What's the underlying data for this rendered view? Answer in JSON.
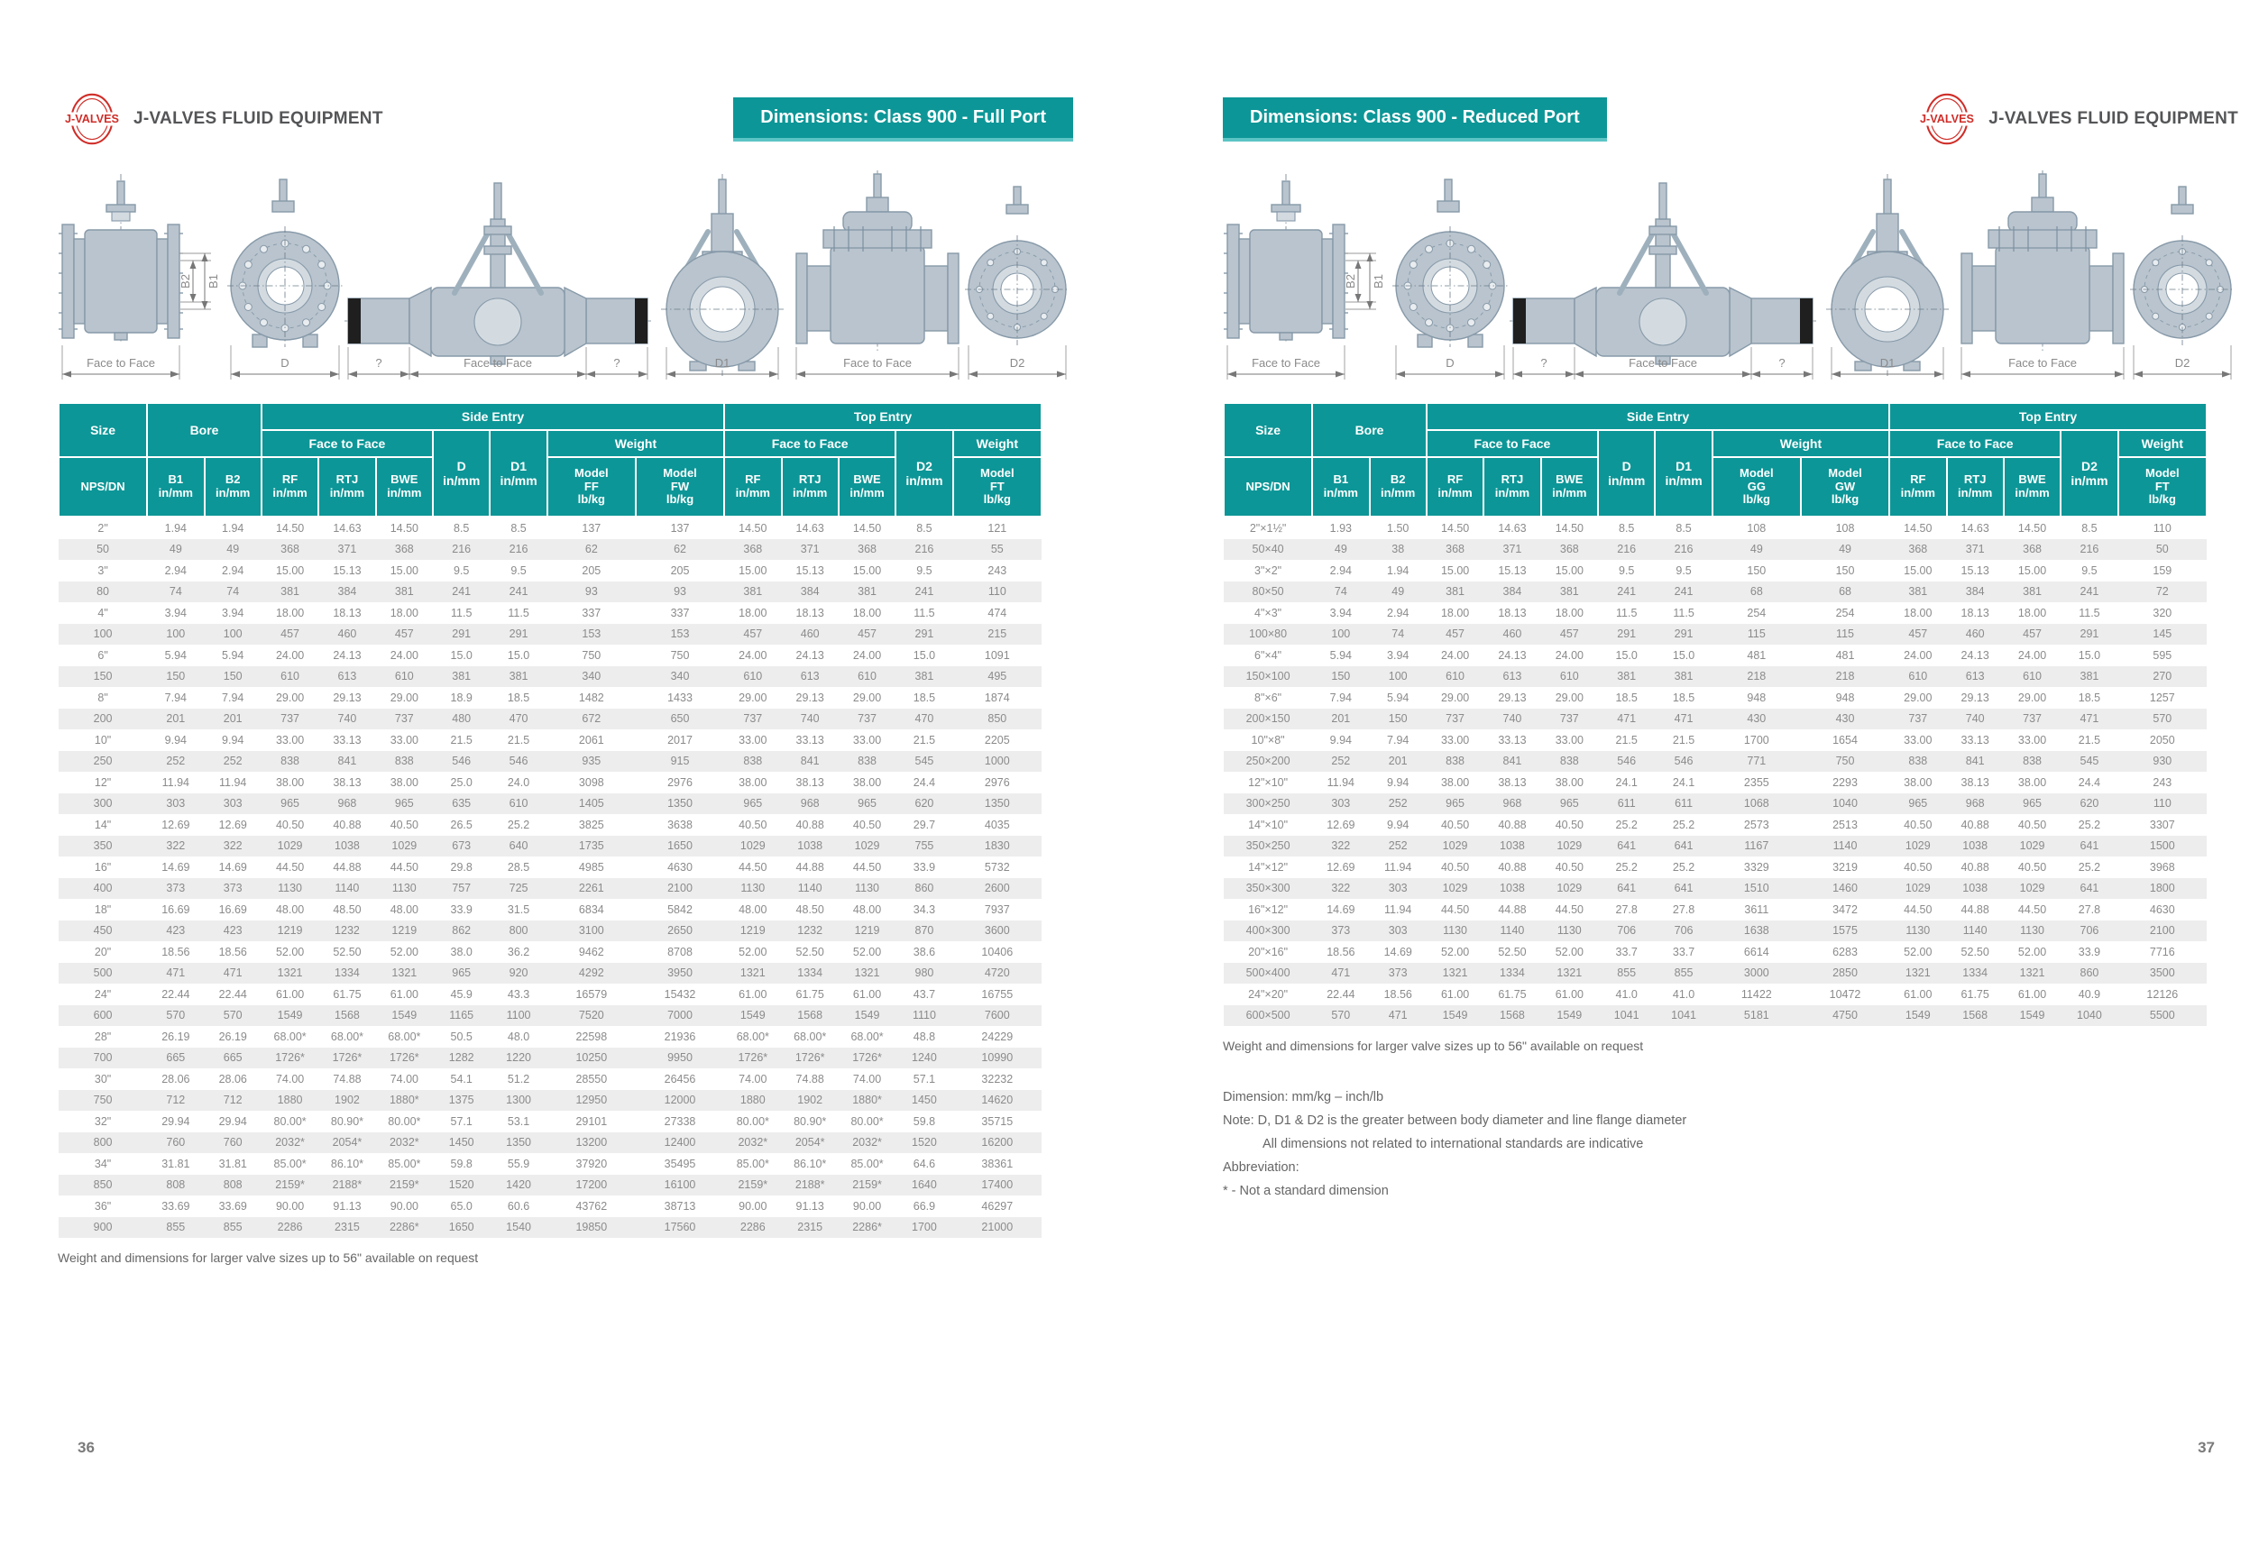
{
  "brand": {
    "logo_text": "J-VALVES",
    "company": "J-VALVES FLUID EQUIPMENT"
  },
  "pages": [
    {
      "banner": "Dimensions: Class 900 - Full Port",
      "page_number": "36",
      "footnote": "Weight and dimensions for larger valve sizes up to 56\" available on request"
    },
    {
      "banner": "Dimensions: Class 900 - Reduced Port",
      "page_number": "37",
      "footnote": "Weight and dimensions for larger valve sizes up to 56\" available on request",
      "notes": [
        {
          "text": "Dimension: mm/kg – inch/lb",
          "indent": false
        },
        {
          "text": "Note: D, D1 & D2 is the greater between body diameter and line flange diameter",
          "indent": false
        },
        {
          "text": "All dimensions not related to international standards are indicative",
          "indent": true
        },
        {
          "text": "Abbreviation:",
          "indent": false
        },
        {
          "text": "* - Not a standard dimension",
          "indent": false
        }
      ]
    }
  ],
  "drawings": {
    "fig1_label": "Face to Face",
    "fig2_label": "D",
    "fig3_left": "?",
    "fig3_label": "Face to Face",
    "fig3_right": "?",
    "fig4_label": "D1",
    "fig5_label": "Face to Face",
    "fig6_label": "D2",
    "b1_label": "B1",
    "b2_label": "B2"
  },
  "colors": {
    "teal": "#0d9697",
    "teal_light": "#5bc4c5",
    "logo_red": "#cf2d28",
    "row_stripe": "#ededed",
    "body_text": "#8b8b8b"
  },
  "tables": {
    "left": {
      "header": {
        "size": "Size",
        "nps": "NPS/DN",
        "bore": "Bore",
        "b1": "B1\nin/mm",
        "b2": "B2\nin/mm",
        "side_entry": "Side Entry",
        "top_entry": "Top Entry",
        "face_to_face": "Face to Face",
        "weight": "Weight",
        "rf": "RF\nin/mm",
        "rtj": "RTJ\nin/mm",
        "bwe": "BWE\nin/mm",
        "d": "D\nin/mm",
        "d1": "D1\nin/mm",
        "d2": "D2\nin/mm",
        "w1": "Model\nFF\nlb/kg",
        "w2": "Model\nFW\nlb/kg",
        "w3": "Model\nFT\nlb/kg"
      },
      "rows": [
        [
          "2\"",
          "1.94",
          "1.94",
          "14.50",
          "14.63",
          "14.50",
          "8.5",
          "8.5",
          "137",
          "137",
          "14.50",
          "14.63",
          "14.50",
          "8.5",
          "121"
        ],
        [
          "50",
          "49",
          "49",
          "368",
          "371",
          "368",
          "216",
          "216",
          "62",
          "62",
          "368",
          "371",
          "368",
          "216",
          "55"
        ],
        [
          "3\"",
          "2.94",
          "2.94",
          "15.00",
          "15.13",
          "15.00",
          "9.5",
          "9.5",
          "205",
          "205",
          "15.00",
          "15.13",
          "15.00",
          "9.5",
          "243"
        ],
        [
          "80",
          "74",
          "74",
          "381",
          "384",
          "381",
          "241",
          "241",
          "93",
          "93",
          "381",
          "384",
          "381",
          "241",
          "110"
        ],
        [
          "4\"",
          "3.94",
          "3.94",
          "18.00",
          "18.13",
          "18.00",
          "11.5",
          "11.5",
          "337",
          "337",
          "18.00",
          "18.13",
          "18.00",
          "11.5",
          "474"
        ],
        [
          "100",
          "100",
          "100",
          "457",
          "460",
          "457",
          "291",
          "291",
          "153",
          "153",
          "457",
          "460",
          "457",
          "291",
          "215"
        ],
        [
          "6\"",
          "5.94",
          "5.94",
          "24.00",
          "24.13",
          "24.00",
          "15.0",
          "15.0",
          "750",
          "750",
          "24.00",
          "24.13",
          "24.00",
          "15.0",
          "1091"
        ],
        [
          "150",
          "150",
          "150",
          "610",
          "613",
          "610",
          "381",
          "381",
          "340",
          "340",
          "610",
          "613",
          "610",
          "381",
          "495"
        ],
        [
          "8\"",
          "7.94",
          "7.94",
          "29.00",
          "29.13",
          "29.00",
          "18.9",
          "18.5",
          "1482",
          "1433",
          "29.00",
          "29.13",
          "29.00",
          "18.5",
          "1874"
        ],
        [
          "200",
          "201",
          "201",
          "737",
          "740",
          "737",
          "480",
          "470",
          "672",
          "650",
          "737",
          "740",
          "737",
          "470",
          "850"
        ],
        [
          "10\"",
          "9.94",
          "9.94",
          "33.00",
          "33.13",
          "33.00",
          "21.5",
          "21.5",
          "2061",
          "2017",
          "33.00",
          "33.13",
          "33.00",
          "21.5",
          "2205"
        ],
        [
          "250",
          "252",
          "252",
          "838",
          "841",
          "838",
          "546",
          "546",
          "935",
          "915",
          "838",
          "841",
          "838",
          "545",
          "1000"
        ],
        [
          "12\"",
          "11.94",
          "11.94",
          "38.00",
          "38.13",
          "38.00",
          "25.0",
          "24.0",
          "3098",
          "2976",
          "38.00",
          "38.13",
          "38.00",
          "24.4",
          "2976"
        ],
        [
          "300",
          "303",
          "303",
          "965",
          "968",
          "965",
          "635",
          "610",
          "1405",
          "1350",
          "965",
          "968",
          "965",
          "620",
          "1350"
        ],
        [
          "14\"",
          "12.69",
          "12.69",
          "40.50",
          "40.88",
          "40.50",
          "26.5",
          "25.2",
          "3825",
          "3638",
          "40.50",
          "40.88",
          "40.50",
          "29.7",
          "4035"
        ],
        [
          "350",
          "322",
          "322",
          "1029",
          "1038",
          "1029",
          "673",
          "640",
          "1735",
          "1650",
          "1029",
          "1038",
          "1029",
          "755",
          "1830"
        ],
        [
          "16\"",
          "14.69",
          "14.69",
          "44.50",
          "44.88",
          "44.50",
          "29.8",
          "28.5",
          "4985",
          "4630",
          "44.50",
          "44.88",
          "44.50",
          "33.9",
          "5732"
        ],
        [
          "400",
          "373",
          "373",
          "1130",
          "1140",
          "1130",
          "757",
          "725",
          "2261",
          "2100",
          "1130",
          "1140",
          "1130",
          "860",
          "2600"
        ],
        [
          "18\"",
          "16.69",
          "16.69",
          "48.00",
          "48.50",
          "48.00",
          "33.9",
          "31.5",
          "6834",
          "5842",
          "48.00",
          "48.50",
          "48.00",
          "34.3",
          "7937"
        ],
        [
          "450",
          "423",
          "423",
          "1219",
          "1232",
          "1219",
          "862",
          "800",
          "3100",
          "2650",
          "1219",
          "1232",
          "1219",
          "870",
          "3600"
        ],
        [
          "20\"",
          "18.56",
          "18.56",
          "52.00",
          "52.50",
          "52.00",
          "38.0",
          "36.2",
          "9462",
          "8708",
          "52.00",
          "52.50",
          "52.00",
          "38.6",
          "10406"
        ],
        [
          "500",
          "471",
          "471",
          "1321",
          "1334",
          "1321",
          "965",
          "920",
          "4292",
          "3950",
          "1321",
          "1334",
          "1321",
          "980",
          "4720"
        ],
        [
          "24\"",
          "22.44",
          "22.44",
          "61.00",
          "61.75",
          "61.00",
          "45.9",
          "43.3",
          "16579",
          "15432",
          "61.00",
          "61.75",
          "61.00",
          "43.7",
          "16755"
        ],
        [
          "600",
          "570",
          "570",
          "1549",
          "1568",
          "1549",
          "1165",
          "1100",
          "7520",
          "7000",
          "1549",
          "1568",
          "1549",
          "1110",
          "7600"
        ],
        [
          "28\"",
          "26.19",
          "26.19",
          "68.00*",
          "68.00*",
          "68.00*",
          "50.5",
          "48.0",
          "22598",
          "21936",
          "68.00*",
          "68.00*",
          "68.00*",
          "48.8",
          "24229"
        ],
        [
          "700",
          "665",
          "665",
          "1726*",
          "1726*",
          "1726*",
          "1282",
          "1220",
          "10250",
          "9950",
          "1726*",
          "1726*",
          "1726*",
          "1240",
          "10990"
        ],
        [
          "30\"",
          "28.06",
          "28.06",
          "74.00",
          "74.88",
          "74.00",
          "54.1",
          "51.2",
          "28550",
          "26456",
          "74.00",
          "74.88",
          "74.00",
          "57.1",
          "32232"
        ],
        [
          "750",
          "712",
          "712",
          "1880",
          "1902",
          "1880*",
          "1375",
          "1300",
          "12950",
          "12000",
          "1880",
          "1902",
          "1880*",
          "1450",
          "14620"
        ],
        [
          "32\"",
          "29.94",
          "29.94",
          "80.00*",
          "80.90*",
          "80.00*",
          "57.1",
          "53.1",
          "29101",
          "27338",
          "80.00*",
          "80.90*",
          "80.00*",
          "59.8",
          "35715"
        ],
        [
          "800",
          "760",
          "760",
          "2032*",
          "2054*",
          "2032*",
          "1450",
          "1350",
          "13200",
          "12400",
          "2032*",
          "2054*",
          "2032*",
          "1520",
          "16200"
        ],
        [
          "34\"",
          "31.81",
          "31.81",
          "85.00*",
          "86.10*",
          "85.00*",
          "59.8",
          "55.9",
          "37920",
          "35495",
          "85.00*",
          "86.10*",
          "85.00*",
          "64.6",
          "38361"
        ],
        [
          "850",
          "808",
          "808",
          "2159*",
          "2188*",
          "2159*",
          "1520",
          "1420",
          "17200",
          "16100",
          "2159*",
          "2188*",
          "2159*",
          "1640",
          "17400"
        ],
        [
          "36\"",
          "33.69",
          "33.69",
          "90.00",
          "91.13",
          "90.00",
          "65.0",
          "60.6",
          "43762",
          "38713",
          "90.00",
          "91.13",
          "90.00",
          "66.9",
          "46297"
        ],
        [
          "900",
          "855",
          "855",
          "2286",
          "2315",
          "2286*",
          "1650",
          "1540",
          "19850",
          "17560",
          "2286",
          "2315",
          "2286*",
          "1700",
          "21000"
        ]
      ]
    },
    "right": {
      "header": {
        "size": "Size",
        "nps": "NPS/DN",
        "bore": "Bore",
        "b1": "B1\nin/mm",
        "b2": "B2\nin/mm",
        "side_entry": "Side Entry",
        "top_entry": "Top Entry",
        "face_to_face": "Face to Face",
        "weight": "Weight",
        "rf": "RF\nin/mm",
        "rtj": "RTJ\nin/mm",
        "bwe": "BWE\nin/mm",
        "d": "D\nin/mm",
        "d1": "D1\nin/mm",
        "d2": "D2\nin/mm",
        "w1": "Model\nGG\nlb/kg",
        "w2": "Model\nGW\nlb/kg",
        "w3": "Model\nFT\nlb/kg"
      },
      "rows": [
        [
          "2\"×1½\"",
          "1.93",
          "1.50",
          "14.50",
          "14.63",
          "14.50",
          "8.5",
          "8.5",
          "108",
          "108",
          "14.50",
          "14.63",
          "14.50",
          "8.5",
          "110"
        ],
        [
          "50×40",
          "49",
          "38",
          "368",
          "371",
          "368",
          "216",
          "216",
          "49",
          "49",
          "368",
          "371",
          "368",
          "216",
          "50"
        ],
        [
          "3\"×2\"",
          "2.94",
          "1.94",
          "15.00",
          "15.13",
          "15.00",
          "9.5",
          "9.5",
          "150",
          "150",
          "15.00",
          "15.13",
          "15.00",
          "9.5",
          "159"
        ],
        [
          "80×50",
          "74",
          "49",
          "381",
          "384",
          "381",
          "241",
          "241",
          "68",
          "68",
          "381",
          "384",
          "381",
          "241",
          "72"
        ],
        [
          "4\"×3\"",
          "3.94",
          "2.94",
          "18.00",
          "18.13",
          "18.00",
          "11.5",
          "11.5",
          "254",
          "254",
          "18.00",
          "18.13",
          "18.00",
          "11.5",
          "320"
        ],
        [
          "100×80",
          "100",
          "74",
          "457",
          "460",
          "457",
          "291",
          "291",
          "115",
          "115",
          "457",
          "460",
          "457",
          "291",
          "145"
        ],
        [
          "6\"×4\"",
          "5.94",
          "3.94",
          "24.00",
          "24.13",
          "24.00",
          "15.0",
          "15.0",
          "481",
          "481",
          "24.00",
          "24.13",
          "24.00",
          "15.0",
          "595"
        ],
        [
          "150×100",
          "150",
          "100",
          "610",
          "613",
          "610",
          "381",
          "381",
          "218",
          "218",
          "610",
          "613",
          "610",
          "381",
          "270"
        ],
        [
          "8\"×6\"",
          "7.94",
          "5.94",
          "29.00",
          "29.13",
          "29.00",
          "18.5",
          "18.5",
          "948",
          "948",
          "29.00",
          "29.13",
          "29.00",
          "18.5",
          "1257"
        ],
        [
          "200×150",
          "201",
          "150",
          "737",
          "740",
          "737",
          "471",
          "471",
          "430",
          "430",
          "737",
          "740",
          "737",
          "471",
          "570"
        ],
        [
          "10\"×8\"",
          "9.94",
          "7.94",
          "33.00",
          "33.13",
          "33.00",
          "21.5",
          "21.5",
          "1700",
          "1654",
          "33.00",
          "33.13",
          "33.00",
          "21.5",
          "2050"
        ],
        [
          "250×200",
          "252",
          "201",
          "838",
          "841",
          "838",
          "546",
          "546",
          "771",
          "750",
          "838",
          "841",
          "838",
          "545",
          "930"
        ],
        [
          "12\"×10\"",
          "11.94",
          "9.94",
          "38.00",
          "38.13",
          "38.00",
          "24.1",
          "24.1",
          "2355",
          "2293",
          "38.00",
          "38.13",
          "38.00",
          "24.4",
          "243"
        ],
        [
          "300×250",
          "303",
          "252",
          "965",
          "968",
          "965",
          "611",
          "611",
          "1068",
          "1040",
          "965",
          "968",
          "965",
          "620",
          "110"
        ],
        [
          "14\"×10\"",
          "12.69",
          "9.94",
          "40.50",
          "40.88",
          "40.50",
          "25.2",
          "25.2",
          "2573",
          "2513",
          "40.50",
          "40.88",
          "40.50",
          "25.2",
          "3307"
        ],
        [
          "350×250",
          "322",
          "252",
          "1029",
          "1038",
          "1029",
          "641",
          "641",
          "1167",
          "1140",
          "1029",
          "1038",
          "1029",
          "641",
          "1500"
        ],
        [
          "14\"×12\"",
          "12.69",
          "11.94",
          "40.50",
          "40.88",
          "40.50",
          "25.2",
          "25.2",
          "3329",
          "3219",
          "40.50",
          "40.88",
          "40.50",
          "25.2",
          "3968"
        ],
        [
          "350×300",
          "322",
          "303",
          "1029",
          "1038",
          "1029",
          "641",
          "641",
          "1510",
          "1460",
          "1029",
          "1038",
          "1029",
          "641",
          "1800"
        ],
        [
          "16\"×12\"",
          "14.69",
          "11.94",
          "44.50",
          "44.88",
          "44.50",
          "27.8",
          "27.8",
          "3611",
          "3472",
          "44.50",
          "44.88",
          "44.50",
          "27.8",
          "4630"
        ],
        [
          "400×300",
          "373",
          "303",
          "1130",
          "1140",
          "1130",
          "706",
          "706",
          "1638",
          "1575",
          "1130",
          "1140",
          "1130",
          "706",
          "2100"
        ],
        [
          "20\"×16\"",
          "18.56",
          "14.69",
          "52.00",
          "52.50",
          "52.00",
          "33.7",
          "33.7",
          "6614",
          "6283",
          "52.00",
          "52.50",
          "52.00",
          "33.9",
          "7716"
        ],
        [
          "500×400",
          "471",
          "373",
          "1321",
          "1334",
          "1321",
          "855",
          "855",
          "3000",
          "2850",
          "1321",
          "1334",
          "1321",
          "860",
          "3500"
        ],
        [
          "24\"×20\"",
          "22.44",
          "18.56",
          "61.00",
          "61.75",
          "61.00",
          "41.0",
          "41.0",
          "11422",
          "10472",
          "61.00",
          "61.75",
          "61.00",
          "40.9",
          "12126"
        ],
        [
          "600×500",
          "570",
          "471",
          "1549",
          "1568",
          "1549",
          "1041",
          "1041",
          "5181",
          "4750",
          "1549",
          "1568",
          "1549",
          "1040",
          "5500"
        ]
      ]
    }
  }
}
